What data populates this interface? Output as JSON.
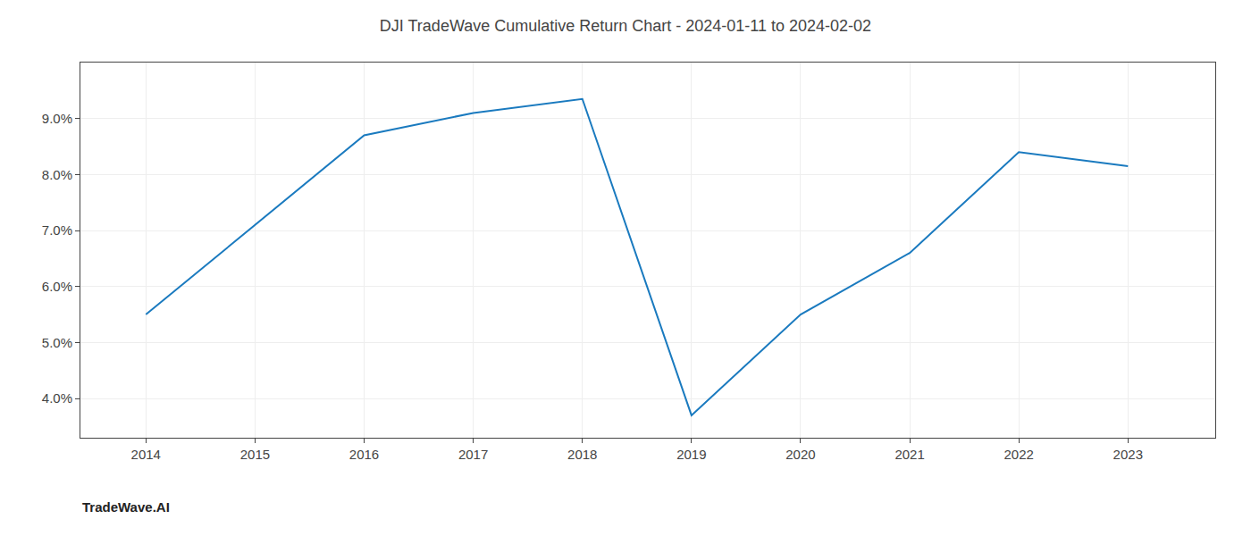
{
  "chart_data": {
    "type": "line",
    "title": "DJI TradeWave Cumulative Return Chart - 2024-01-11 to 2024-02-02",
    "x": [
      2014,
      2015,
      2016,
      2017,
      2018,
      2019,
      2020,
      2021,
      2022,
      2023
    ],
    "values": [
      0.055,
      0.071,
      0.087,
      0.091,
      0.0935,
      0.037,
      0.055,
      0.066,
      0.084,
      0.0815
    ],
    "color": "#1a7abf",
    "xlim": [
      2013.4,
      2023.8
    ],
    "xticks": [
      2014,
      2015,
      2016,
      2017,
      2018,
      2019,
      2020,
      2021,
      2022,
      2023
    ],
    "ylim": [
      0.033,
      0.1
    ],
    "yticks": [
      {
        "value": 0.04,
        "label": "4.0%"
      },
      {
        "value": 0.05,
        "label": "5.0%"
      },
      {
        "value": 0.06,
        "label": "6.0%"
      },
      {
        "value": 0.07,
        "label": "7.0%"
      },
      {
        "value": 0.08,
        "label": "8.0%"
      },
      {
        "value": 0.09,
        "label": "9.0%"
      }
    ],
    "grid": true,
    "annotations": [
      "TradeWave.AI"
    ]
  }
}
